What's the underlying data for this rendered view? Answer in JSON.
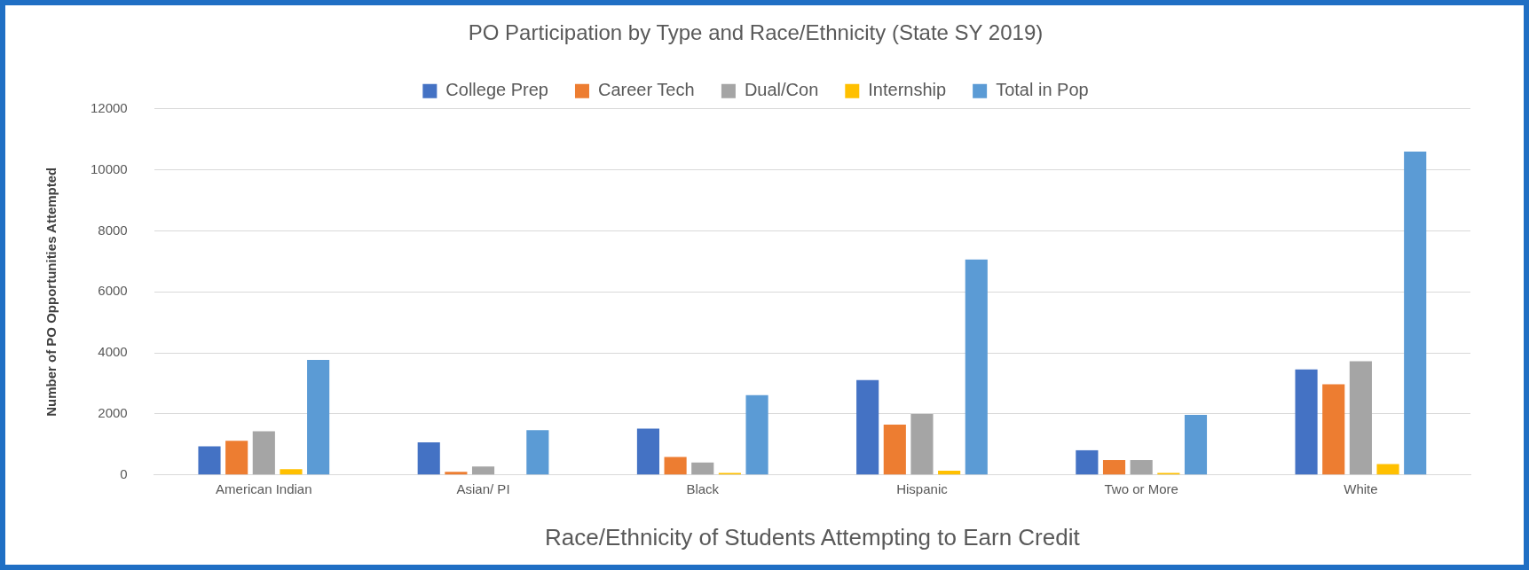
{
  "chart_data": {
    "type": "bar",
    "title": "PO Participation by Type and Race/Ethnicity (State SY 2019)",
    "xlabel": "Race/Ethnicity of Students Attempting to Earn Credit",
    "ylabel": "Number of PO Opportunities Attempted",
    "categories": [
      "American Indian",
      "Asian/ PI",
      "Black",
      "Hispanic",
      "Two or More",
      "White"
    ],
    "series": [
      {
        "name": "College Prep",
        "color": "#4472c4",
        "values": [
          940,
          1070,
          1520,
          3110,
          810,
          3460
        ]
      },
      {
        "name": "Career Tech",
        "color": "#ed7d31",
        "values": [
          1120,
          100,
          590,
          1650,
          490,
          2970
        ]
      },
      {
        "name": "Dual/Con",
        "color": "#a5a5a5",
        "values": [
          1430,
          280,
          410,
          2000,
          490,
          3730
        ]
      },
      {
        "name": "Internship",
        "color": "#ffc000",
        "values": [
          190,
          0,
          70,
          140,
          70,
          360
        ]
      },
      {
        "name": "Total in Pop",
        "color": "#5b9bd5",
        "values": [
          3770,
          1470,
          2620,
          7060,
          1970,
          10600
        ]
      }
    ],
    "ylim": [
      0,
      12000
    ],
    "yticks": [
      0,
      2000,
      4000,
      6000,
      8000,
      10000,
      12000
    ],
    "grid": "y",
    "legend": "top"
  }
}
